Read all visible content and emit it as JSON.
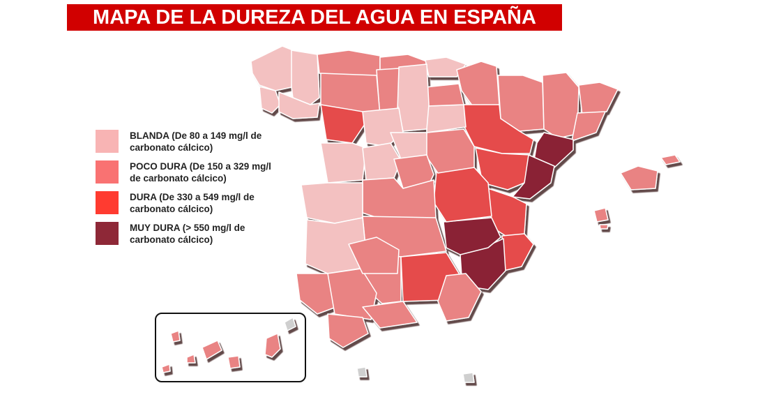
{
  "title": "MAPA DE LA DUREZA DEL AGUA EN ESPAÑA",
  "colors": {
    "blanda": "#f3c1c1",
    "poco_dura": "#e98383",
    "dura": "#e54b4b",
    "muy_dura": "#8a2434",
    "ciudades_autonomas": "#cfcfcf",
    "title_bg": "#d10000"
  },
  "legend": [
    {
      "key": "blanda",
      "label": "BLANDA (De 80 a 149 mg/l de carbonato cálcico)",
      "color": "#f8b4b4"
    },
    {
      "key": "poco_dura",
      "label": "POCO DURA (De 150 a 329 mg/l de carbonato cálcico)",
      "color": "#f97272"
    },
    {
      "key": "dura",
      "label": "DURA (De 330 a 549 mg/l de carbonato cálcico)",
      "color": "#ff3b30"
    },
    {
      "key": "muy_dura",
      "label": "MUY DURA (> 550 mg/l de carbonato cálcico)",
      "color": "#8e2837"
    }
  ],
  "region_levels": [
    "blanda",
    "blanda",
    "blanda",
    "blanda",
    "poco_dura",
    "poco_dura",
    "blanda",
    "poco_dura",
    "poco_dura",
    "poco_dura",
    "poco_dura",
    "poco_dura",
    "muy_dura",
    "dura",
    "dura",
    "muy_dura",
    "dura",
    "dura",
    "muy_dura",
    "muy_dura",
    "dura",
    "poco_dura",
    "blanda",
    "poco_dura",
    "blanda",
    "poco_dura",
    "dura",
    "poco_dura",
    "blanda",
    "blanda",
    "blanda",
    "blanda",
    "poco_dura",
    "poco_dura",
    "blanda",
    "poco_dura",
    "blanda",
    "poco_dura",
    "dura",
    "poco_dura",
    "poco_dura",
    "poco_dura",
    "poco_dura",
    "poco_dura",
    "poco_dura",
    "poco_dura",
    "poco_dura",
    "poco_dura",
    "poco_dura",
    "poco_dura",
    "poco_dura",
    "poco_dura",
    "poco_dura",
    "poco_dura",
    "poco_dura",
    "ciudades_autonomas",
    "ciudades_autonomas"
  ]
}
